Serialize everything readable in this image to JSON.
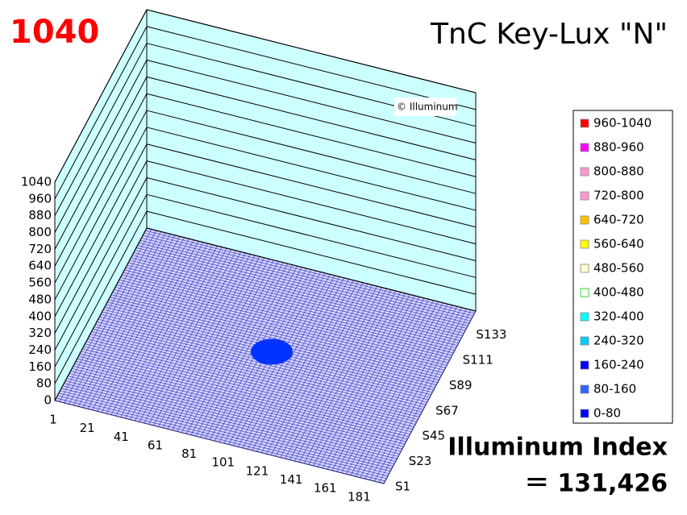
{
  "chart_data": {
    "type": "surface",
    "title": "TnC Key-Lux \"N\"",
    "corner_label": "1040",
    "watermark": "© Illuminum",
    "index_label": "Illuminum Index",
    "index_value": "＝ 131,426",
    "categories": [
      "1",
      "21",
      "41",
      "61",
      "81",
      "101",
      "121",
      "141",
      "161",
      "181"
    ],
    "series_names": [
      "S1",
      "S23",
      "S45",
      "S67",
      "S89",
      "S111",
      "S133"
    ],
    "zlim": [
      0,
      1040
    ],
    "zticks": [
      0,
      80,
      160,
      240,
      320,
      400,
      480,
      560,
      640,
      720,
      800,
      880,
      960,
      1040
    ],
    "legend": [
      {
        "name": "960-1040",
        "color": "#ff0000"
      },
      {
        "name": "880-960",
        "color": "#ff00ff"
      },
      {
        "name": "800-880",
        "color": "#ff99cc"
      },
      {
        "name": "720-800",
        "color": "#ff99cc"
      },
      {
        "name": "640-720",
        "color": "#ffc000"
      },
      {
        "name": "560-640",
        "color": "#ffff00"
      },
      {
        "name": "480-560",
        "color": "#ffffcc"
      },
      {
        "name": "400-480",
        "color": "#ffffff"
      },
      {
        "name": "320-400",
        "color": "#00ffff"
      },
      {
        "name": "240-320",
        "color": "#00ccff"
      },
      {
        "name": "160-240",
        "color": "#0000ff"
      },
      {
        "name": "80-160",
        "color": "#3366ff"
      },
      {
        "name": "0-80",
        "color": "#0000ff"
      }
    ]
  }
}
